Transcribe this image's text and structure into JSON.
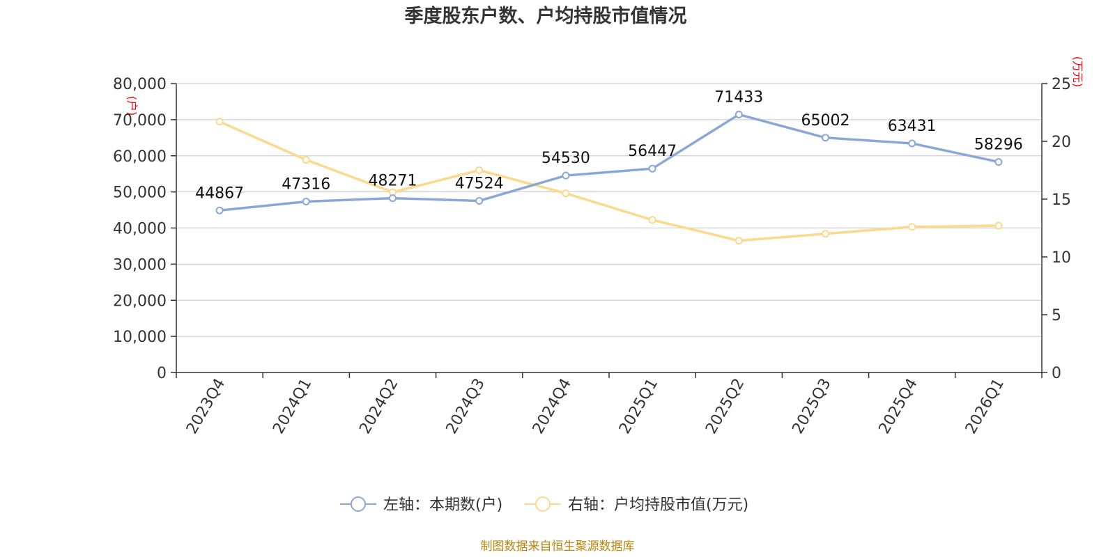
{
  "chart_data": {
    "type": "line",
    "title": "季度股东户数、户均持股市值情况",
    "categories": [
      "2023Q4",
      "2024Q1",
      "2024Q2",
      "2024Q3",
      "2024Q4",
      "2025Q1",
      "2025Q2",
      "2025Q3",
      "2025Q4",
      "2026Q1"
    ],
    "left_axis": {
      "unit": "(户)",
      "ylim": [
        0,
        80000
      ],
      "ticks": [
        "0",
        "10,000",
        "20,000",
        "30,000",
        "40,000",
        "50,000",
        "60,000",
        "70,000",
        "80,000"
      ]
    },
    "right_axis": {
      "unit": "(万元)",
      "ylim": [
        0,
        25
      ],
      "ticks": [
        "0",
        "5",
        "10",
        "15",
        "20",
        "25"
      ]
    },
    "grid": true,
    "legend_position": "bottom",
    "series": [
      {
        "name": "左轴：本期数(户)",
        "axis": "left",
        "color": "#8ba7d8",
        "values": [
          44867,
          47316,
          48271,
          47524,
          54530,
          56447,
          71433,
          65002,
          63431,
          58296
        ],
        "labels": [
          "44867",
          "47316",
          "48271",
          "47524",
          "54530",
          "56447",
          "71433",
          "65002",
          "63431",
          "58296"
        ]
      },
      {
        "name": "右轴：户均持股市值(万元)",
        "axis": "right",
        "color": "#fbd98d",
        "values": [
          21.7,
          18.4,
          15.6,
          17.5,
          15.5,
          13.2,
          11.4,
          12.0,
          12.6,
          12.7
        ]
      }
    ],
    "source": "制图数据来自恒生聚源数据库"
  }
}
